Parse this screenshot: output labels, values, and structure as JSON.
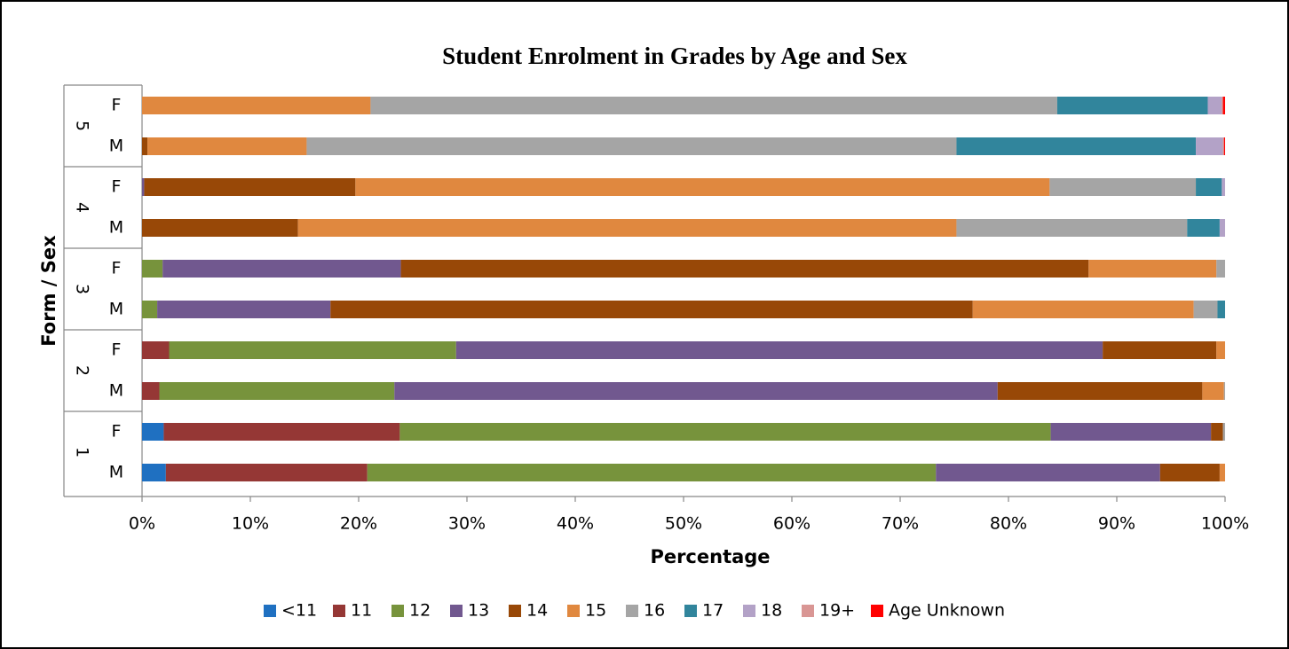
{
  "chart_data": {
    "type": "stacked-bar-horizontal",
    "title": "Student Enrolment in Grades by Age and Sex",
    "xlabel": "Percentage",
    "ylabel": "Form / Sex",
    "categories": [
      "M",
      "F",
      "M",
      "F",
      "M",
      "F",
      "M",
      "F",
      "M",
      "F"
    ],
    "category_groups": [
      "1",
      "2",
      "3",
      "4",
      "5"
    ],
    "xlim": [
      0,
      100
    ],
    "xticks": [
      {
        "value": 0,
        "label": "0%"
      },
      {
        "value": 10,
        "label": "10%"
      },
      {
        "value": 20,
        "label": "20%"
      },
      {
        "value": 30,
        "label": "30%"
      },
      {
        "value": 40,
        "label": "40%"
      },
      {
        "value": 50,
        "label": "50%"
      },
      {
        "value": 60,
        "label": "60%"
      },
      {
        "value": 70,
        "label": "70%"
      },
      {
        "value": 80,
        "label": "80%"
      },
      {
        "value": 90,
        "label": "90%"
      },
      {
        "value": 100,
        "label": "100%"
      }
    ],
    "legend": "bottom",
    "series": [
      {
        "name": "<11",
        "color": "#1f70c1",
        "values": [
          2.2,
          2.0,
          0,
          0,
          0,
          0,
          0,
          0,
          0,
          0
        ]
      },
      {
        "name": "11",
        "color": "#953735",
        "values": [
          18.6,
          21.8,
          1.6,
          2.5,
          0,
          0,
          0,
          0,
          0,
          0
        ]
      },
      {
        "name": "12",
        "color": "#77933c",
        "values": [
          52.5,
          60.1,
          21.7,
          26.5,
          1.4,
          1.9,
          0,
          0,
          0,
          0
        ]
      },
      {
        "name": "13",
        "color": "#71588f",
        "values": [
          20.7,
          14.8,
          55.7,
          59.7,
          16.0,
          22.0,
          0,
          0.2,
          0,
          0
        ]
      },
      {
        "name": "14",
        "color": "#984807",
        "values": [
          5.5,
          1.1,
          18.9,
          10.5,
          59.3,
          63.5,
          14.4,
          19.5,
          0.5,
          0
        ]
      },
      {
        "name": "15",
        "color": "#e0883f",
        "values": [
          0.5,
          0,
          2.0,
          0.8,
          20.4,
          11.8,
          60.8,
          64.1,
          14.7,
          21.1
        ]
      },
      {
        "name": "16",
        "color": "#a5a5a5",
        "values": [
          0,
          0.2,
          0.1,
          0,
          2.2,
          0.8,
          21.3,
          13.5,
          60.0,
          63.4
        ]
      },
      {
        "name": "17",
        "color": "#31859c",
        "values": [
          0,
          0,
          0,
          0,
          0.7,
          0,
          3.0,
          2.4,
          22.1,
          13.9
        ]
      },
      {
        "name": "18",
        "color": "#b3a2c7",
        "values": [
          0,
          0,
          0,
          0,
          0,
          0,
          0.5,
          0.3,
          2.5,
          1.3
        ]
      },
      {
        "name": "19+",
        "color": "#d99694",
        "values": [
          0,
          0,
          0,
          0,
          0,
          0,
          0,
          0,
          0.1,
          0.1
        ]
      },
      {
        "name": "Age Unknown",
        "color": "#ff0000",
        "values": [
          0,
          0,
          0,
          0,
          0,
          0,
          0,
          0,
          0.1,
          0.2
        ]
      }
    ]
  }
}
